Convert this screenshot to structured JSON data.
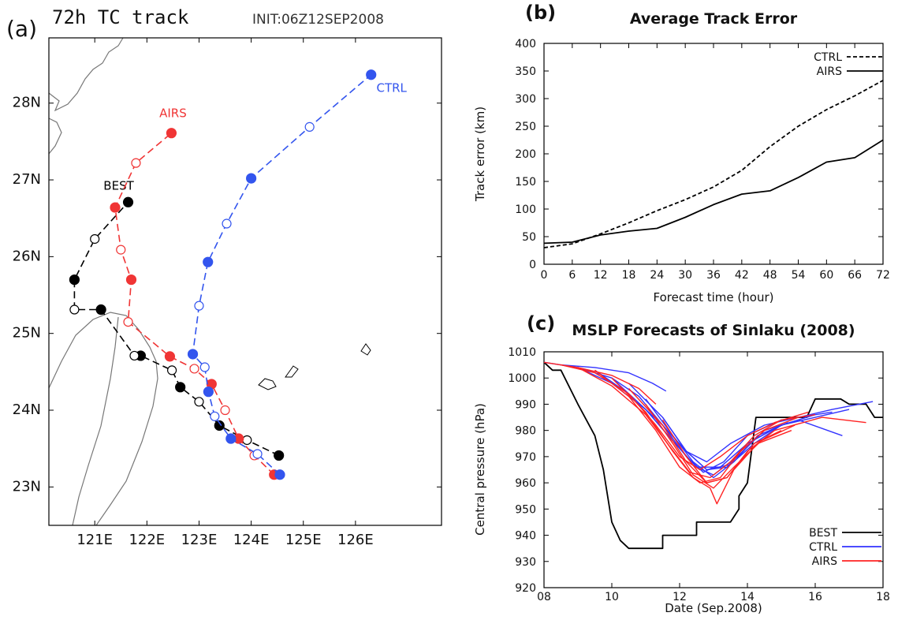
{
  "chart_data": [
    {
      "type": "track",
      "panel_label": "(a)",
      "title": "72h TC track",
      "subtitle": "INIT:06Z12SEP2008",
      "xlim": [
        120.12,
        127.65
      ],
      "ylim": [
        22.5,
        28.85
      ],
      "xticks": [
        {
          "value": 121,
          "label": "121E"
        },
        {
          "value": 122,
          "label": "122E"
        },
        {
          "value": 123,
          "label": "123E"
        },
        {
          "value": 124,
          "label": "124E"
        },
        {
          "value": 125,
          "label": "125E"
        },
        {
          "value": 126,
          "label": "126E"
        }
      ],
      "yticks": [
        {
          "value": 23,
          "label": "23N"
        },
        {
          "value": 24,
          "label": "24N"
        },
        {
          "value": 25,
          "label": "25N"
        },
        {
          "value": 26,
          "label": "26N"
        },
        {
          "value": 27,
          "label": "27N"
        },
        {
          "value": 28,
          "label": "28N"
        }
      ],
      "series": [
        {
          "name": "BEST",
          "color": "#000000",
          "x": [
            124.53,
            123.92,
            123.39,
            123.0,
            122.64,
            122.48,
            121.88,
            121.76,
            121.12,
            120.61,
            120.61,
            121.0,
            121.64
          ],
          "values": [
            23.41,
            23.61,
            23.8,
            24.11,
            24.3,
            24.52,
            24.71,
            24.71,
            25.31,
            25.31,
            25.7,
            26.23,
            26.71
          ]
        },
        {
          "name": "AIRS",
          "color": "#f03535",
          "x": [
            124.44,
            124.06,
            123.76,
            123.5,
            123.24,
            122.91,
            122.44,
            121.64,
            121.7,
            121.5,
            121.39,
            121.79,
            122.47
          ],
          "values": [
            23.16,
            23.41,
            23.63,
            24.0,
            24.34,
            24.54,
            24.7,
            25.15,
            25.7,
            26.09,
            26.64,
            27.22,
            27.61
          ]
        },
        {
          "name": "CTRL",
          "color": "#3355ee",
          "x": [
            124.55,
            124.12,
            123.61,
            123.3,
            123.18,
            123.11,
            122.88,
            123.0,
            123.17,
            123.53,
            124.0,
            125.12,
            126.3
          ],
          "values": [
            23.16,
            23.43,
            23.63,
            23.92,
            24.24,
            24.56,
            24.73,
            25.36,
            25.93,
            26.43,
            27.02,
            27.69,
            28.37
          ]
        }
      ]
    },
    {
      "type": "line",
      "panel_label": "(b)",
      "title": "Average Track Error",
      "x_label": "Forecast time (hour)",
      "y_label": "Track error (km)",
      "xlim": [
        0,
        72
      ],
      "ylim": [
        0,
        400
      ],
      "xticks": [
        0,
        6,
        12,
        18,
        24,
        30,
        36,
        42,
        48,
        54,
        60,
        66,
        72
      ],
      "yticks": [
        0,
        50,
        100,
        150,
        200,
        250,
        300,
        350,
        400
      ],
      "x": [
        0,
        6,
        12,
        18,
        24,
        30,
        36,
        42,
        48,
        54,
        60,
        66,
        72
      ],
      "series": [
        {
          "name": "CTRL",
          "color": "#000000",
          "linestyle": "dashed",
          "values": [
            30,
            37,
            55,
            75,
            97,
            117,
            140,
            170,
            213,
            250,
            280,
            305,
            333
          ]
        },
        {
          "name": "AIRS",
          "color": "#000000",
          "linestyle": "solid",
          "values": [
            38,
            40,
            53,
            60,
            65,
            85,
            108,
            127,
            133,
            157,
            185,
            193,
            225
          ]
        }
      ]
    },
    {
      "type": "line",
      "panel_label": "(c)",
      "title": "MSLP Forecasts of Sinlaku (2008)",
      "x_label": "Date (Sep.2008)",
      "y_label": "Central pressure (hPa)",
      "xlim": [
        8,
        18
      ],
      "ylim": [
        920,
        1010
      ],
      "xticks": [
        {
          "value": 8,
          "label": "08"
        },
        10,
        12,
        14,
        16,
        18
      ],
      "yticks": [
        920,
        930,
        940,
        950,
        960,
        970,
        980,
        990,
        1000,
        1010
      ],
      "series": [
        {
          "name": "BEST",
          "color": "#000000",
          "linestyle": "solid",
          "x": [
            8.0,
            8.25,
            8.5,
            9.0,
            9.5,
            9.75,
            10.0,
            10.25,
            10.5,
            11.5,
            11.5,
            12.5,
            12.5,
            13.5,
            13.75,
            13.75,
            14.0,
            14.25,
            15.75,
            16.0,
            16.75,
            17.0,
            17.5,
            17.75,
            18.0
          ],
          "values": [
            1006,
            1003,
            1003,
            990,
            978,
            965,
            945,
            938,
            935,
            935,
            940,
            940,
            945,
            945,
            950,
            955,
            960,
            985,
            985,
            992,
            992,
            990,
            990,
            985,
            985
          ]
        },
        {
          "name": "CTRL",
          "color": "#3333ff",
          "linestyle": "solid",
          "lines": [
            {
              "x": [
                8.5,
                9.5,
                10.5,
                11.2,
                11.6
              ],
              "values": [
                1005,
                1004,
                1002,
                998,
                995
              ]
            },
            {
              "x": [
                8,
                9,
                10,
                10.8,
                11.5,
                12.2,
                12.8,
                13.5,
                14.5,
                15.5,
                16.5,
                17.7
              ],
              "values": [
                1006,
                1004,
                1000,
                993,
                982,
                972,
                968,
                975,
                982,
                985,
                988,
                991
              ]
            },
            {
              "x": [
                9,
                10,
                11,
                11.8,
                12.5,
                13.2,
                14,
                15,
                16,
                17
              ],
              "values": [
                1004,
                998,
                988,
                976,
                966,
                966,
                975,
                982,
                985,
                988
              ]
            },
            {
              "x": [
                9.5,
                10.5,
                11.5,
                12.2,
                12.7,
                13.3,
                14,
                15,
                16.5
              ],
              "values": [
                1003,
                994,
                982,
                970,
                964,
                968,
                978,
                984,
                987
              ]
            },
            {
              "x": [
                10,
                11,
                11.8,
                12.5,
                13,
                13.7,
                14.5,
                15.5,
                16.8
              ],
              "values": [
                1000,
                988,
                976,
                966,
                963,
                970,
                980,
                984,
                978
              ]
            },
            {
              "x": [
                10.5,
                11.5,
                12.2,
                12.8,
                13.5,
                14.2,
                15,
                16
              ],
              "values": [
                998,
                985,
                972,
                965,
                967,
                975,
                982,
                986
              ]
            },
            {
              "x": [
                11,
                11.8,
                12.4,
                13,
                13.6,
                14.3,
                15.2
              ],
              "values": [
                992,
                978,
                968,
                962,
                968,
                978,
                983
              ]
            },
            {
              "x": [
                11.5,
                12.2,
                12.8,
                13.4,
                14,
                14.7
              ],
              "values": [
                985,
                972,
                965,
                966,
                975,
                980
              ]
            }
          ]
        },
        {
          "name": "AIRS",
          "color": "#ff2222",
          "linestyle": "solid",
          "lines": [
            {
              "x": [
                8,
                9,
                10,
                10.8,
                11.3
              ],
              "values": [
                1006,
                1004,
                1001,
                996,
                990
              ]
            },
            {
              "x": [
                8.5,
                9.5,
                10.5,
                11.3,
                12,
                12.6,
                13.2,
                14,
                14.8,
                15.8
              ],
              "values": [
                1005,
                1002,
                994,
                982,
                970,
                965,
                970,
                978,
                983,
                987
              ]
            },
            {
              "x": [
                9,
                10,
                11,
                11.7,
                12.3,
                12.9,
                13.5,
                14.2,
                15,
                16
              ],
              "values": [
                1004,
                997,
                986,
                974,
                964,
                962,
                968,
                978,
                984,
                986
              ]
            },
            {
              "x": [
                9.5,
                10.5,
                11.3,
                12,
                12.6,
                13.2,
                13.8,
                14.5,
                15.5
              ],
              "values": [
                1003,
                993,
                980,
                966,
                960,
                962,
                972,
                980,
                985
              ]
            },
            {
              "x": [
                10,
                11,
                11.8,
                12.4,
                12.9,
                13.1,
                13.6,
                14.3,
                15.3
              ],
              "values": [
                1000,
                987,
                972,
                962,
                958,
                952,
                965,
                975,
                980
              ]
            },
            {
              "x": [
                10.5,
                11.5,
                12.2,
                12.8,
                13.4,
                14,
                14.8,
                16.2,
                17.5
              ],
              "values": [
                996,
                982,
                968,
                960,
                962,
                972,
                980,
                985,
                983
              ]
            },
            {
              "x": [
                11,
                11.8,
                12.4,
                13,
                13.6,
                14.4,
                15.4
              ],
              "values": [
                990,
                975,
                963,
                958,
                966,
                976,
                982
              ]
            },
            {
              "x": [
                11.5,
                12.2,
                12.8,
                13.4,
                14.2,
                15
              ],
              "values": [
                984,
                970,
                960,
                962,
                975,
                980
              ]
            }
          ]
        }
      ]
    }
  ]
}
